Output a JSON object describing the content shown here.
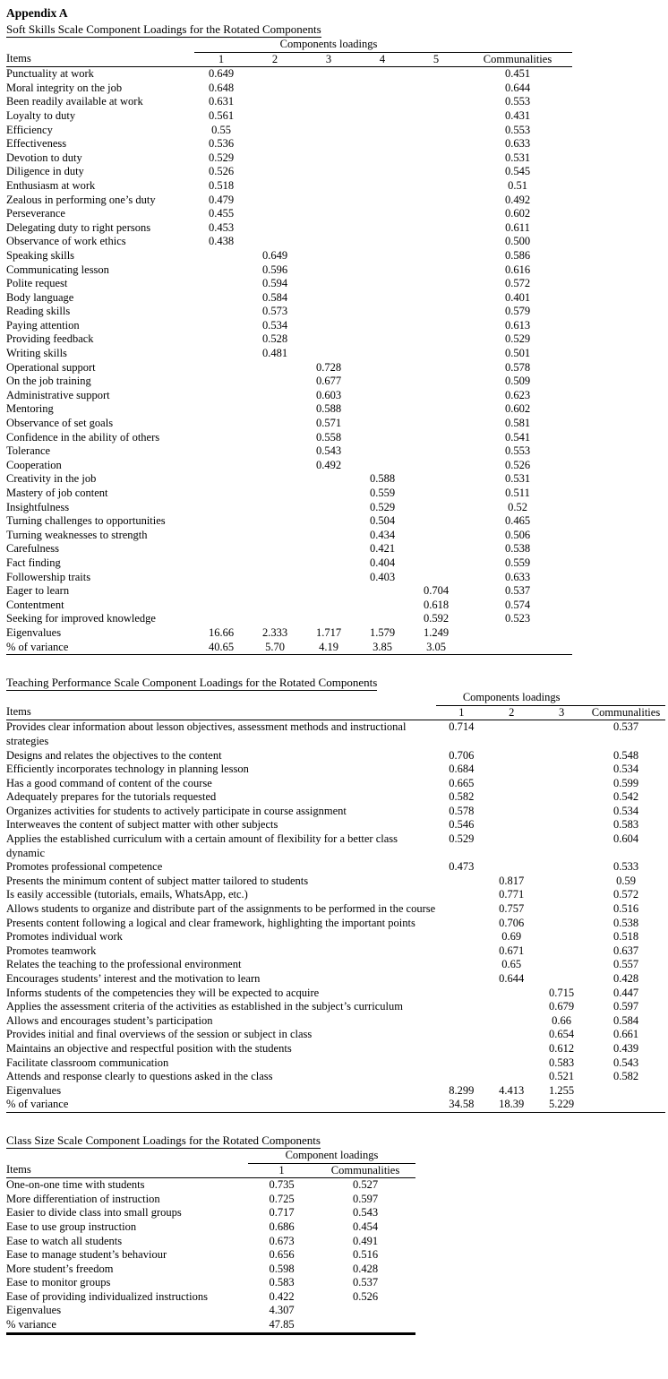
{
  "page": {
    "appendix_label": "Appendix A"
  },
  "tables": [
    {
      "id": "soft-skills-scale",
      "title": "Soft Skills Scale Component Loadings for the Rotated Components",
      "group_header": "Components loadings",
      "columns": [
        "Items",
        "1",
        "2",
        "3",
        "4",
        "5",
        "Communalities"
      ],
      "rows": [
        [
          "Punctuality at work",
          "0.649",
          "",
          "",
          "",
          "",
          "0.451"
        ],
        [
          "Moral integrity on the job",
          "0.648",
          "",
          "",
          "",
          "",
          "0.644"
        ],
        [
          "Been readily available at work",
          "0.631",
          "",
          "",
          "",
          "",
          "0.553"
        ],
        [
          "Loyalty to duty",
          "0.561",
          "",
          "",
          "",
          "",
          "0.431"
        ],
        [
          "Efficiency",
          "0.55",
          "",
          "",
          "",
          "",
          "0.553"
        ],
        [
          "Effectiveness",
          "0.536",
          "",
          "",
          "",
          "",
          "0.633"
        ],
        [
          "Devotion to duty",
          "0.529",
          "",
          "",
          "",
          "",
          "0.531"
        ],
        [
          "Diligence in duty",
          "0.526",
          "",
          "",
          "",
          "",
          "0.545"
        ],
        [
          "Enthusiasm at work",
          "0.518",
          "",
          "",
          "",
          "",
          "0.51"
        ],
        [
          "Zealous in performing one’s duty",
          "0.479",
          "",
          "",
          "",
          "",
          "0.492"
        ],
        [
          "Perseverance",
          "0.455",
          "",
          "",
          "",
          "",
          "0.602"
        ],
        [
          "Delegating duty to right persons",
          "0.453",
          "",
          "",
          "",
          "",
          "0.611"
        ],
        [
          "Observance of work ethics",
          "0.438",
          "",
          "",
          "",
          "",
          "0.500"
        ],
        [
          "Speaking skills",
          "",
          "0.649",
          "",
          "",
          "",
          "0.586"
        ],
        [
          "Communicating lesson",
          "",
          "0.596",
          "",
          "",
          "",
          "0.616"
        ],
        [
          "Polite request",
          "",
          "0.594",
          "",
          "",
          "",
          "0.572"
        ],
        [
          "Body language",
          "",
          "0.584",
          "",
          "",
          "",
          "0.401"
        ],
        [
          "Reading skills",
          "",
          "0.573",
          "",
          "",
          "",
          "0.579"
        ],
        [
          "Paying attention",
          "",
          "0.534",
          "",
          "",
          "",
          "0.613"
        ],
        [
          "Providing feedback",
          "",
          "0.528",
          "",
          "",
          "",
          "0.529"
        ],
        [
          "Writing skills",
          "",
          "0.481",
          "",
          "",
          "",
          "0.501"
        ],
        [
          "Operational support",
          "",
          "",
          "0.728",
          "",
          "",
          "0.578"
        ],
        [
          "On the job training",
          "",
          "",
          "0.677",
          "",
          "",
          "0.509"
        ],
        [
          "Administrative support",
          "",
          "",
          "0.603",
          "",
          "",
          "0.623"
        ],
        [
          "Mentoring",
          "",
          "",
          "0.588",
          "",
          "",
          "0.602"
        ],
        [
          "Observance of set goals",
          "",
          "",
          "0.571",
          "",
          "",
          "0.581"
        ],
        [
          "Confidence in the ability of others",
          "",
          "",
          "0.558",
          "",
          "",
          "0.541"
        ],
        [
          "Tolerance",
          "",
          "",
          "0.543",
          "",
          "",
          "0.553"
        ],
        [
          "Cooperation",
          "",
          "",
          "0.492",
          "",
          "",
          "0.526"
        ],
        [
          "Creativity in the job",
          "",
          "",
          "",
          "0.588",
          "",
          "0.531"
        ],
        [
          "Mastery of job content",
          "",
          "",
          "",
          "0.559",
          "",
          "0.511"
        ],
        [
          "Insightfulness",
          "",
          "",
          "",
          "0.529",
          "",
          "0.52"
        ],
        [
          "Turning challenges to opportunities",
          "",
          "",
          "",
          "0.504",
          "",
          "0.465"
        ],
        [
          "Turning weaknesses to strength",
          "",
          "",
          "",
          "0.434",
          "",
          "0.506"
        ],
        [
          "Carefulness",
          "",
          "",
          "",
          "0.421",
          "",
          "0.538"
        ],
        [
          "Fact finding",
          "",
          "",
          "",
          "0.404",
          "",
          "0.559"
        ],
        [
          "Followership traits",
          "",
          "",
          "",
          "0.403",
          "",
          "0.633"
        ],
        [
          "Eager to learn",
          "",
          "",
          "",
          "",
          "0.704",
          "0.537"
        ],
        [
          "Contentment",
          "",
          "",
          "",
          "",
          "0.618",
          "0.574"
        ],
        [
          "Seeking for improved knowledge",
          "",
          "",
          "",
          "",
          "0.592",
          "0.523"
        ],
        [
          "Eigenvalues",
          "16.66",
          "2.333",
          "1.717",
          "1.579",
          "1.249",
          ""
        ],
        [
          "% of variance",
          "40.65",
          "5.70",
          "4.19",
          "3.85",
          "3.05",
          ""
        ]
      ]
    },
    {
      "id": "teaching-performance-scale",
      "title": "Teaching Performance Scale Component Loadings for the Rotated Components",
      "group_header": "Components loadings",
      "columns": [
        "Items",
        "1",
        "2",
        "3",
        "Communalities"
      ],
      "rows": [
        [
          "Provides clear information about lesson objectives, assessment methods and instructional strategies",
          "0.714",
          "",
          "",
          "0.537"
        ],
        [
          "Designs and relates the objectives to the content",
          "0.706",
          "",
          "",
          "0.548"
        ],
        [
          "Efficiently incorporates technology in planning lesson",
          "0.684",
          "",
          "",
          "0.534"
        ],
        [
          "Has a good command of content of the course",
          "0.665",
          "",
          "",
          "0.599"
        ],
        [
          "Adequately prepares for the tutorials requested",
          "0.582",
          "",
          "",
          "0.542"
        ],
        [
          "Organizes activities for students to actively participate in course assignment",
          "0.578",
          "",
          "",
          "0.534"
        ],
        [
          "Interweaves the content of subject matter with other subjects",
          "0.546",
          "",
          "",
          "0.583"
        ],
        [
          "Applies the established curriculum with a certain amount of flexibility for a better class dynamic",
          "0.529",
          "",
          "",
          "0.604"
        ],
        [
          "Promotes professional competence",
          "0.473",
          "",
          "",
          "0.533"
        ],
        [
          "Presents the minimum content of subject matter tailored to students",
          "",
          "0.817",
          "",
          "0.59"
        ],
        [
          "Is easily accessible (tutorials, emails, WhatsApp, etc.)",
          "",
          "0.771",
          "",
          "0.572"
        ],
        [
          "Allows students to organize and distribute part of the assignments to be performed in the course",
          "",
          "0.757",
          "",
          "0.516"
        ],
        [
          "Presents content following a logical and clear framework, highlighting the important points",
          "",
          "0.706",
          "",
          "0.538"
        ],
        [
          "Promotes individual work",
          "",
          "0.69",
          "",
          "0.518"
        ],
        [
          "Promotes teamwork",
          "",
          "0.671",
          "",
          "0.637"
        ],
        [
          "Relates the teaching to the professional environment",
          "",
          "0.65",
          "",
          "0.557"
        ],
        [
          "Encourages students’ interest and the motivation to learn",
          "",
          "0.644",
          "",
          "0.428"
        ],
        [
          "Informs students of the competencies they will be expected to acquire",
          "",
          "",
          "0.715",
          "0.447"
        ],
        [
          "Applies the assessment criteria of the activities as established in the subject’s curriculum",
          "",
          "",
          "0.679",
          "0.597"
        ],
        [
          "Allows and encourages student’s participation",
          "",
          "",
          "0.66",
          "0.584"
        ],
        [
          "Provides initial and final overviews of the session or subject in class",
          "",
          "",
          "0.654",
          "0.661"
        ],
        [
          "Maintains an objective and respectful position with the students",
          "",
          "",
          "0.612",
          "0.439"
        ],
        [
          "Facilitate classroom communication",
          "",
          "",
          "0.583",
          "0.543"
        ],
        [
          "Attends and response clearly to questions asked in the class",
          "",
          "",
          "0.521",
          "0.582"
        ],
        [
          "Eigenvalues",
          "8.299",
          "4.413",
          "1.255",
          ""
        ],
        [
          "% of variance",
          "34.58",
          "18.39",
          "5.229",
          ""
        ]
      ]
    },
    {
      "id": "class-size-scale",
      "title": "Class Size Scale Component Loadings for the Rotated Components",
      "group_header": "Component loadings",
      "columns": [
        "Items",
        "1",
        "Communalities"
      ],
      "rows": [
        [
          "One-on-one time with students",
          "0.735",
          "0.527"
        ],
        [
          "More differentiation of instruction",
          "0.725",
          "0.597"
        ],
        [
          "Easier to divide class into small groups",
          "0.717",
          "0.543"
        ],
        [
          "Ease to use group instruction",
          "0.686",
          "0.454"
        ],
        [
          "Ease to watch all students",
          "0.673",
          "0.491"
        ],
        [
          "Ease to manage student’s behaviour",
          "0.656",
          "0.516"
        ],
        [
          "More student’s freedom",
          "0.598",
          "0.428"
        ],
        [
          "Ease to monitor groups",
          "0.583",
          "0.537"
        ],
        [
          "Ease of providing individualized instructions",
          "0.422",
          "0.526"
        ],
        [
          "Eigenvalues",
          "4.307",
          ""
        ],
        [
          "% variance",
          "47.85",
          ""
        ]
      ]
    }
  ]
}
